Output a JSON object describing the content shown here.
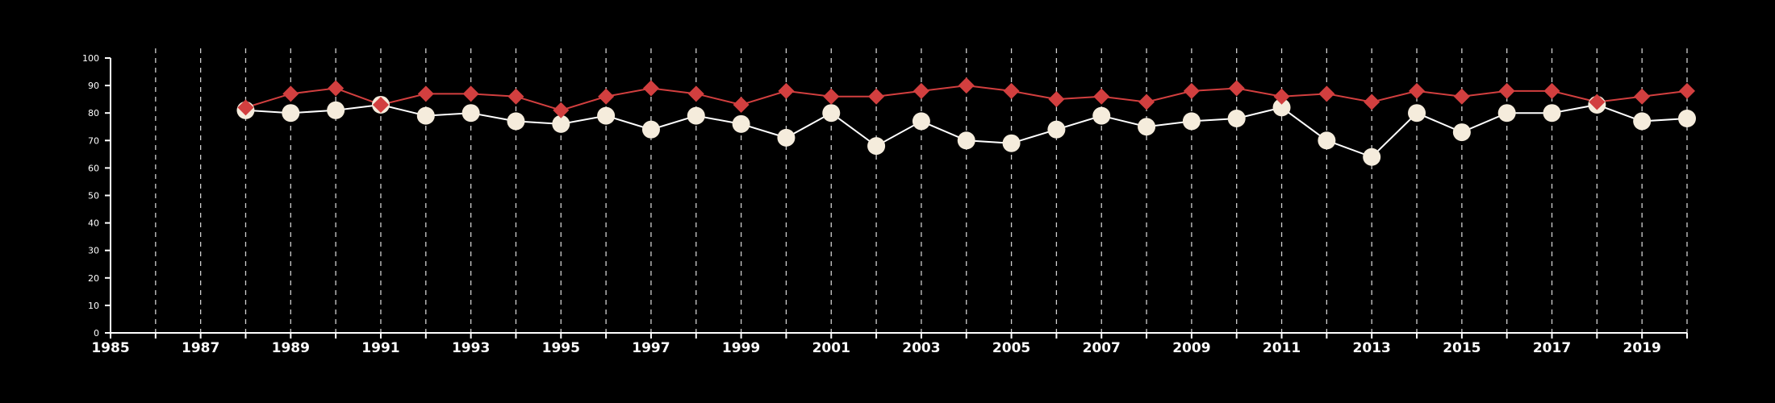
{
  "chart_data": {
    "type": "line",
    "title": "",
    "xlabel": "",
    "ylabel": "",
    "xlim": [
      1985,
      2020
    ],
    "ylim": [
      0,
      100
    ],
    "grid": "vertical dashed lines at each year",
    "legend": "none",
    "x_ticks": [
      "1985",
      "1987",
      "1989",
      "1991",
      "1993",
      "1995",
      "1997",
      "1999",
      "2001",
      "2003",
      "2005",
      "2007",
      "2009",
      "2011",
      "2013",
      "2015",
      "2017",
      "2019"
    ],
    "y_ticks": [
      "0",
      "10",
      "20",
      "30",
      "40",
      "50",
      "60",
      "70",
      "80",
      "90",
      "100"
    ],
    "x": [
      1988,
      1989,
      1990,
      1991,
      1992,
      1993,
      1994,
      1995,
      1996,
      1997,
      1998,
      1999,
      2000,
      2001,
      2002,
      2003,
      2004,
      2005,
      2006,
      2007,
      2008,
      2009,
      2010,
      2011,
      2012,
      2013,
      2014,
      2015,
      2016,
      2017,
      2018,
      2019,
      2020
    ],
    "series": [
      {
        "marker": "diamond",
        "color": "#d23f3f",
        "values": [
          82,
          87,
          89,
          83,
          87,
          87,
          86,
          81,
          86,
          89,
          87,
          83,
          88,
          86,
          86,
          88,
          90,
          88,
          85,
          86,
          84,
          88,
          89,
          86,
          87,
          84,
          88,
          86,
          88,
          88,
          84,
          86,
          88
        ]
      },
      {
        "marker": "circle",
        "color": "#f5ecdc",
        "line_color": "#ffffff",
        "values": [
          81,
          80,
          81,
          83,
          79,
          80,
          77,
          76,
          79,
          74,
          79,
          76,
          71,
          80,
          68,
          77,
          70,
          69,
          74,
          79,
          75,
          77,
          78,
          82,
          70,
          64,
          80,
          73,
          80,
          80,
          83,
          77,
          78
        ]
      }
    ]
  }
}
